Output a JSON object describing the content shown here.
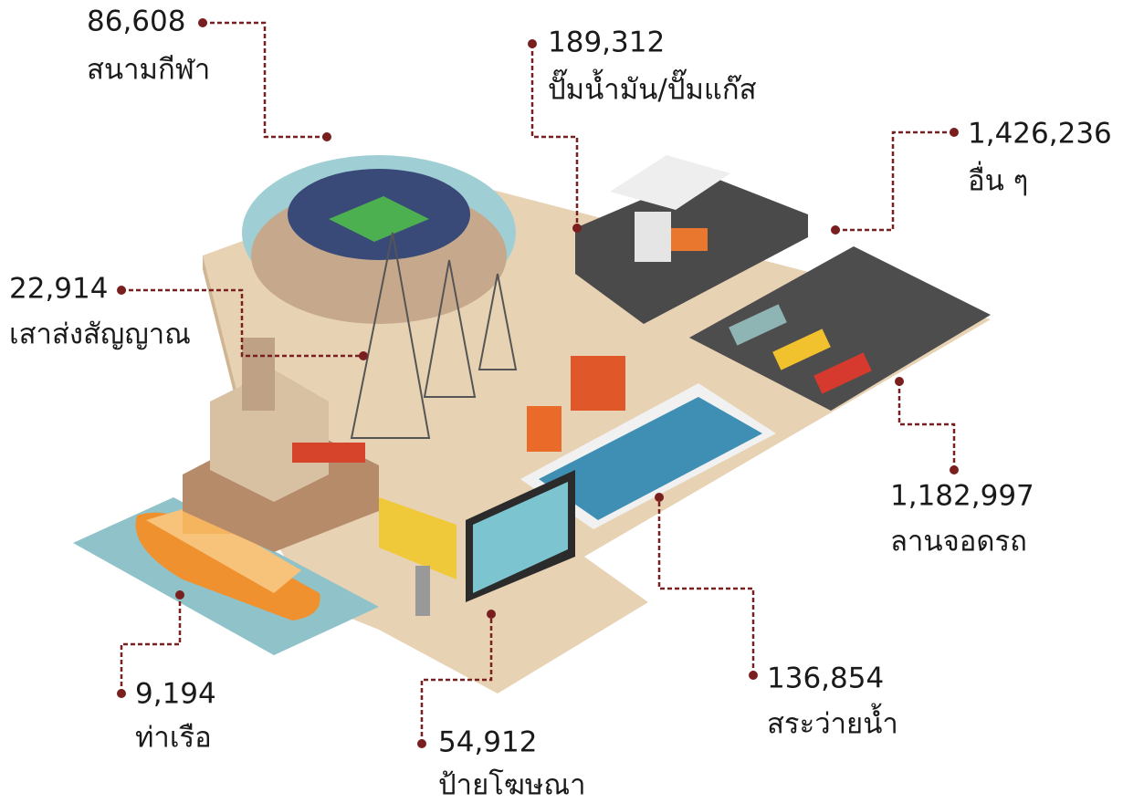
{
  "callouts": [
    {
      "value": "86,608",
      "label": "สนามกีฬา"
    },
    {
      "value": "189,312",
      "label": "ปั๊มน้ำมัน/ปั๊มแก๊ส"
    },
    {
      "value": "1,426,236",
      "label": "อื่น ๆ"
    },
    {
      "value": "22,914",
      "label": "เสาส่งสัญญาณ"
    },
    {
      "value": "1,182,997",
      "label": "ลานจอดรถ"
    },
    {
      "value": "9,194",
      "label": "ท่าเรือ"
    },
    {
      "value": "54,912",
      "label": "ป้ายโฆษณา"
    },
    {
      "value": "136,854",
      "label": "สระว่ายน้ำ"
    }
  ]
}
